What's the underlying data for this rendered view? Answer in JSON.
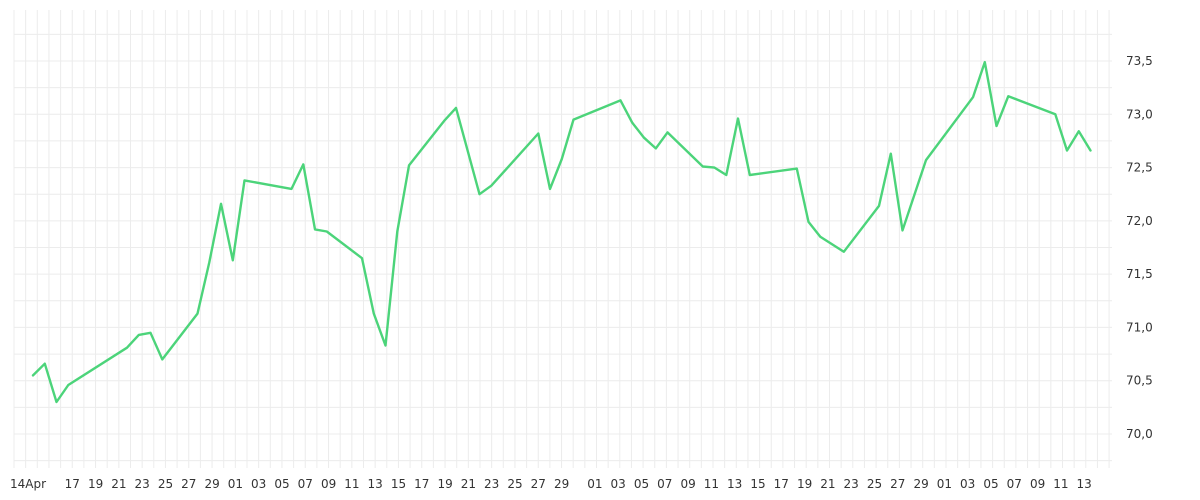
{
  "chart_data": {
    "type": "line",
    "title": "",
    "xlabel": "",
    "ylabel": "",
    "grid": true,
    "x_tick_labels": [
      "14Apr",
      "17",
      "19",
      "21",
      "23",
      "25",
      "27",
      "29",
      "01",
      "03",
      "05",
      "07",
      "09",
      "11",
      "13",
      "15",
      "17",
      "19",
      "21",
      "23",
      "25",
      "27",
      "29",
      "01",
      "03",
      "05",
      "07",
      "09",
      "11",
      "13",
      "15",
      "17",
      "19",
      "21",
      "23",
      "25",
      "27",
      "29",
      "01",
      "03",
      "05",
      "07",
      "09",
      "11",
      "13"
    ],
    "y_tick_labels": [
      "70,0",
      "70,5",
      "71,0",
      "71,5",
      "72,0",
      "72,5",
      "73,0",
      "73,5"
    ],
    "ylim": [
      69.65,
      73.8
    ],
    "colors": {
      "line": "#4cd47a",
      "grid": "#ececec",
      "text": "#333333"
    },
    "series": [
      {
        "name": "",
        "points": [
          {
            "x": "14Apr",
            "y": 70.55
          },
          {
            "x": "15Apr",
            "y": 70.66
          },
          {
            "x": "16Apr",
            "y": 70.3
          },
          {
            "x": "17Apr",
            "y": 70.46
          },
          {
            "x": "22Apr",
            "y": 70.81
          },
          {
            "x": "23Apr",
            "y": 70.93
          },
          {
            "x": "24Apr",
            "y": 70.95
          },
          {
            "x": "25Apr",
            "y": 70.7
          },
          {
            "x": "28Apr",
            "y": 71.13
          },
          {
            "x": "29Apr",
            "y": 71.61
          },
          {
            "x": "30Apr",
            "y": 72.16
          },
          {
            "x": "01May",
            "y": 71.63
          },
          {
            "x": "02May",
            "y": 72.38
          },
          {
            "x": "06May",
            "y": 72.3
          },
          {
            "x": "07May",
            "y": 72.53
          },
          {
            "x": "08May",
            "y": 71.92
          },
          {
            "x": "09May",
            "y": 71.9
          },
          {
            "x": "12May",
            "y": 71.65
          },
          {
            "x": "13May",
            "y": 71.13
          },
          {
            "x": "14May",
            "y": 70.83
          },
          {
            "x": "15May",
            "y": 71.9
          },
          {
            "x": "16May",
            "y": 72.52
          },
          {
            "x": "19May",
            "y": 72.94
          },
          {
            "x": "20May",
            "y": 73.06
          },
          {
            "x": "22May",
            "y": 72.25
          },
          {
            "x": "23May",
            "y": 72.33
          },
          {
            "x": "27May",
            "y": 72.82
          },
          {
            "x": "28May",
            "y": 72.3
          },
          {
            "x": "29May",
            "y": 72.58
          },
          {
            "x": "30May",
            "y": 72.95
          },
          {
            "x": "03Jun",
            "y": 73.13
          },
          {
            "x": "04Jun",
            "y": 72.92
          },
          {
            "x": "05Jun",
            "y": 72.78
          },
          {
            "x": "06Jun",
            "y": 72.68
          },
          {
            "x": "07Jun",
            "y": 72.83
          },
          {
            "x": "10Jun",
            "y": 72.51
          },
          {
            "x": "11Jun",
            "y": 72.5
          },
          {
            "x": "12Jun",
            "y": 72.43
          },
          {
            "x": "13Jun",
            "y": 72.96
          },
          {
            "x": "14Jun",
            "y": 72.43
          },
          {
            "x": "18Jun",
            "y": 72.49
          },
          {
            "x": "19Jun",
            "y": 71.99
          },
          {
            "x": "20Jun",
            "y": 71.85
          },
          {
            "x": "22Jun",
            "y": 71.71
          },
          {
            "x": "25Jun",
            "y": 72.14
          },
          {
            "x": "26Jun",
            "y": 72.63
          },
          {
            "x": "27Jun",
            "y": 71.91
          },
          {
            "x": "29Jun",
            "y": 72.57
          },
          {
            "x": "03Jul",
            "y": 73.16
          },
          {
            "x": "04Jul",
            "y": 73.49
          },
          {
            "x": "05Jul",
            "y": 72.89
          },
          {
            "x": "06Jul",
            "y": 73.17
          },
          {
            "x": "10Jul",
            "y": 73.0
          },
          {
            "x": "11Jul",
            "y": 72.66
          },
          {
            "x": "12Jul",
            "y": 72.84
          },
          {
            "x": "13Jul",
            "y": 72.66
          }
        ]
      }
    ]
  }
}
